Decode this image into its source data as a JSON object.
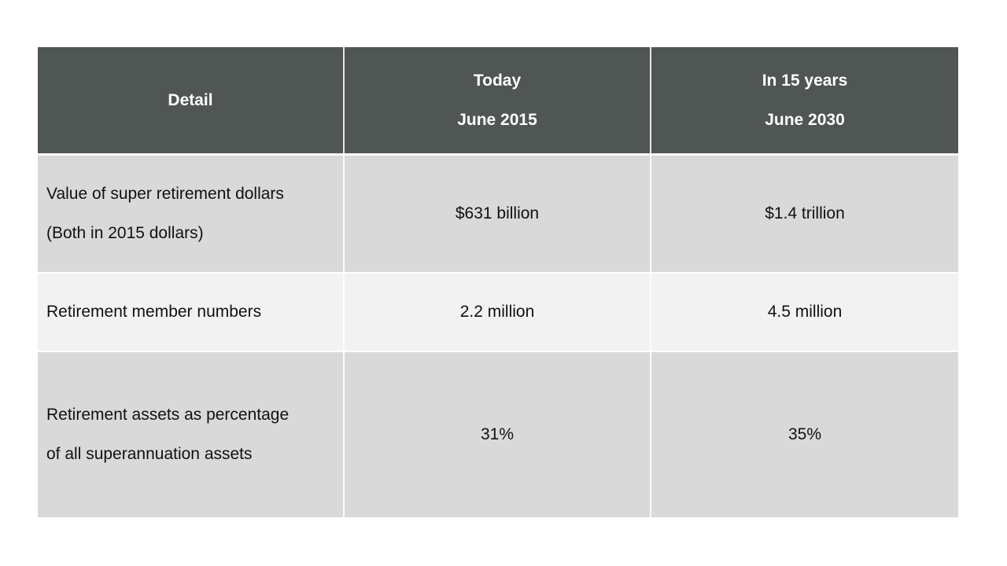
{
  "slide": {
    "background_color": "#FFFFFF"
  },
  "table": {
    "style": {
      "header_bg": "#4F5653",
      "header_text_color": "#FFFFFF",
      "row_dark_bg": "#D9D9D9",
      "row_light_bg": "#F2F2F2",
      "body_text_color": "#111111",
      "gridline_color": "#FFFFFF"
    },
    "header": {
      "detail": "Detail",
      "today": [
        "Today",
        "June 2015"
      ],
      "in15": [
        "In 15 years",
        "June 2030"
      ]
    },
    "rows": [
      {
        "detail": [
          "Value of super retirement dollars",
          "(Both in 2015 dollars)"
        ],
        "today": "$631 billion",
        "in15": "$1.4 trillion"
      },
      {
        "detail": [
          "Retirement member numbers"
        ],
        "today": "2.2 million",
        "in15": "4.5 million"
      },
      {
        "detail": [
          "Retirement assets as percentage",
          "of all superannuation assets"
        ],
        "today": "31%",
        "in15": "35%"
      }
    ]
  }
}
